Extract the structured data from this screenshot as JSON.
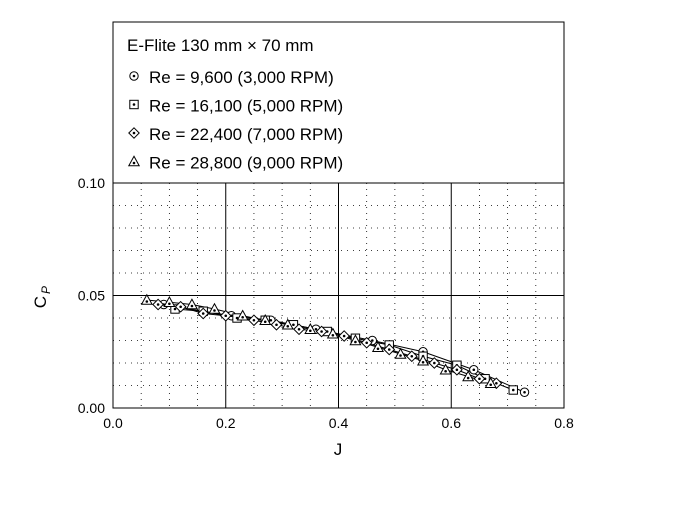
{
  "chart_data": {
    "type": "line",
    "title": "E-Flite 130 mm × 70 mm",
    "xlabel": "J",
    "ylabel": "C",
    "ylabel_sub": "P",
    "xlim": [
      0.0,
      0.8
    ],
    "ylim": [
      0.0,
      0.1
    ],
    "x_ticks": [
      "0.0",
      "0.2",
      "0.4",
      "0.6",
      "0.8"
    ],
    "y_ticks": [
      "0.00",
      "0.05",
      "0.10"
    ],
    "grid": true,
    "legend_position": "top-left, above plot",
    "series": [
      {
        "name": "Re = 9,600 (3,000 RPM)",
        "marker": "circle-dot",
        "x": [
          0.09,
          0.16,
          0.21,
          0.28,
          0.36,
          0.46,
          0.55,
          0.64,
          0.73
        ],
        "y": [
          0.046,
          0.043,
          0.041,
          0.039,
          0.035,
          0.03,
          0.025,
          0.017,
          0.007
        ]
      },
      {
        "name": "Re = 16,100 (5,000 RPM)",
        "marker": "square-dot",
        "x": [
          0.11,
          0.16,
          0.22,
          0.27,
          0.32,
          0.38,
          0.43,
          0.49,
          0.55,
          0.61,
          0.66,
          0.71
        ],
        "y": [
          0.044,
          0.043,
          0.04,
          0.039,
          0.037,
          0.034,
          0.031,
          0.028,
          0.023,
          0.019,
          0.013,
          0.008
        ]
      },
      {
        "name": "Re = 22,400 (7,000 RPM)",
        "marker": "diamond-dot",
        "x": [
          0.08,
          0.12,
          0.16,
          0.2,
          0.25,
          0.29,
          0.33,
          0.37,
          0.41,
          0.45,
          0.49,
          0.53,
          0.57,
          0.61,
          0.65,
          0.68
        ],
        "y": [
          0.046,
          0.045,
          0.042,
          0.041,
          0.039,
          0.037,
          0.035,
          0.034,
          0.032,
          0.029,
          0.026,
          0.023,
          0.02,
          0.017,
          0.013,
          0.011
        ]
      },
      {
        "name": "Re = 28,800 (9,000 RPM)",
        "marker": "triangle-dot",
        "x": [
          0.06,
          0.1,
          0.14,
          0.18,
          0.23,
          0.27,
          0.31,
          0.35,
          0.39,
          0.43,
          0.47,
          0.51,
          0.55,
          0.59,
          0.63,
          0.67
        ],
        "y": [
          0.048,
          0.047,
          0.046,
          0.044,
          0.041,
          0.039,
          0.037,
          0.035,
          0.033,
          0.03,
          0.027,
          0.024,
          0.021,
          0.017,
          0.014,
          0.011
        ]
      }
    ]
  }
}
